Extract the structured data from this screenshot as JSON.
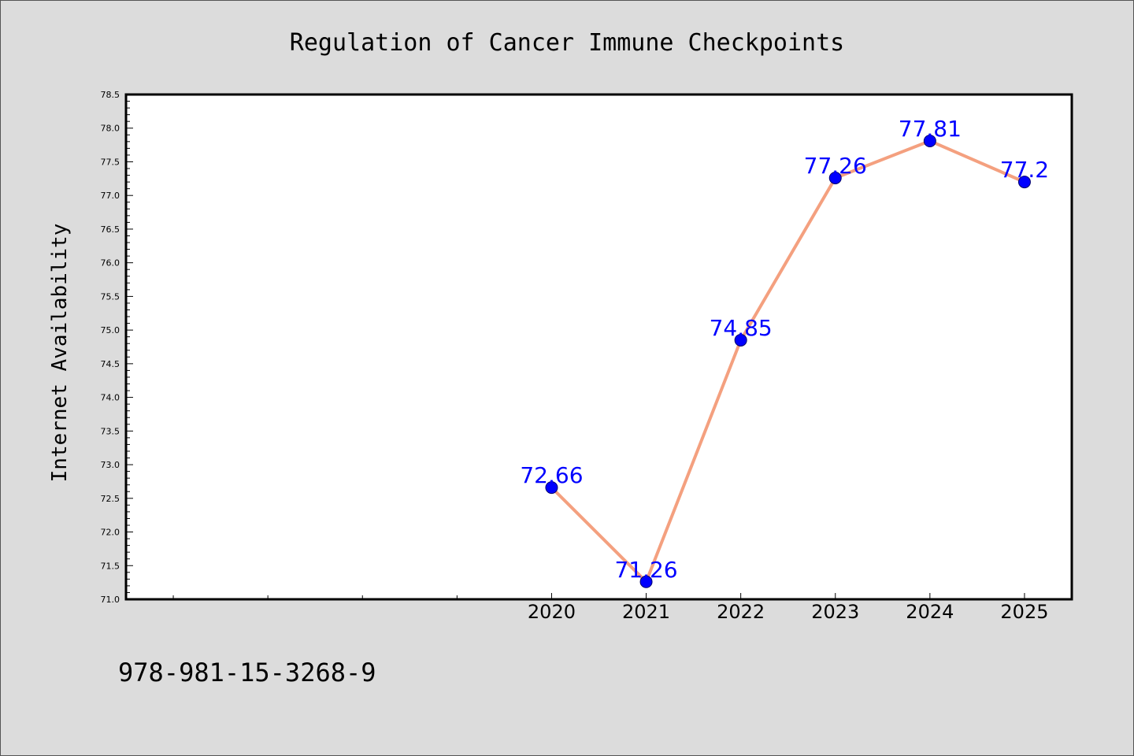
{
  "footer": {
    "isbn": "978-981-15-3268-9"
  },
  "colors": {
    "background": "#dcdcdc",
    "plot_background": "#ffffff",
    "line": "#f4a07f",
    "marker": "#0000ff",
    "label": "#0000ff"
  },
  "chart_data": {
    "type": "line",
    "title": "Regulation of Cancer Immune Checkpoints",
    "xlabel": "",
    "ylabel": "Internet Availability",
    "x": [
      2020,
      2021,
      2022,
      2023,
      2024,
      2025
    ],
    "x_tick_labels": [
      "2020",
      "2021",
      "2022",
      "2023",
      "2024",
      "2025"
    ],
    "xlim": [
      2015.5,
      2025.5
    ],
    "ylim": [
      71.0,
      78.5
    ],
    "y_ticks": [
      "71.0",
      "71.5",
      "72.0",
      "72.5",
      "73.0",
      "73.5",
      "74.0",
      "74.5",
      "75.0",
      "75.5",
      "76.0",
      "76.5",
      "77.0",
      "77.5",
      "78.0",
      "78.5"
    ],
    "series": [
      {
        "values": [
          72.66,
          71.26,
          74.85,
          77.26,
          77.81,
          77.2
        ],
        "labels": [
          "72.66",
          "71.26",
          "74.85",
          "77.26",
          "77.81",
          "77.2"
        ]
      }
    ],
    "grid": false,
    "legend": "none"
  }
}
